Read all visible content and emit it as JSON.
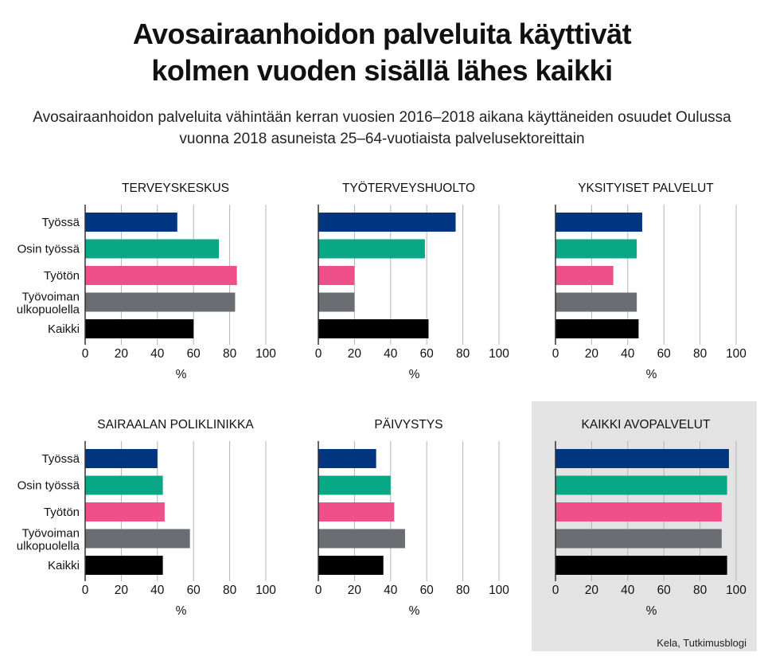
{
  "title": {
    "line1": "Avosairaanhoidon palveluita käyttivät",
    "line2": "kolmen vuoden sisällä lähes kaikki"
  },
  "subtitle": {
    "line1": "Avosairaanhoidon palveluita vähintään kerran vuosien 2016–2018 aikana käyttäneiden osuudet Oulussa",
    "line2": "vuonna 2018 asuneista 25–64-vuotiaista palvelusektoreittain"
  },
  "source": "Kela, Tutkimusblogi",
  "colors": {
    "Työssä": "#003580",
    "Osin työssä": "#08a887",
    "Työtön": "#f0508a",
    "Työvoiman ulkopuolella": "#6a6e72",
    "Kaikki": "#000000",
    "highlight_bg": "#e3e3e3",
    "gridline": "#b5b5b5"
  },
  "chart_data": [
    {
      "type": "bar",
      "orientation": "horizontal",
      "title": "TERVEYSKESKUS",
      "categories": [
        "Työssä",
        "Osin työssä",
        "Työtön",
        "Työvoiman ulkopuolella",
        "Kaikki"
      ],
      "values": [
        51,
        74,
        84,
        83,
        60
      ],
      "xlabel": "%",
      "xlim": [
        0,
        100
      ],
      "xticks": [
        "0",
        "20",
        "40",
        "60",
        "80",
        "100"
      ],
      "grid": true,
      "highlight": false
    },
    {
      "type": "bar",
      "orientation": "horizontal",
      "title": "TYÖTERVEYSHUOLTO",
      "categories": [
        "Työssä",
        "Osin työssä",
        "Työtön",
        "Työvoiman ulkopuolella",
        "Kaikki"
      ],
      "values": [
        76,
        59,
        20,
        20,
        61
      ],
      "xlabel": "%",
      "xlim": [
        0,
        100
      ],
      "xticks": [
        "0",
        "20",
        "40",
        "60",
        "80",
        "100"
      ],
      "grid": true,
      "highlight": false
    },
    {
      "type": "bar",
      "orientation": "horizontal",
      "title": "YKSITYISET PALVELUT",
      "categories": [
        "Työssä",
        "Osin työssä",
        "Työtön",
        "Työvoiman ulkopuolella",
        "Kaikki"
      ],
      "values": [
        48,
        45,
        32,
        45,
        46
      ],
      "xlabel": "%",
      "xlim": [
        0,
        100
      ],
      "xticks": [
        "0",
        "20",
        "40",
        "60",
        "80",
        "100"
      ],
      "grid": true,
      "highlight": false
    },
    {
      "type": "bar",
      "orientation": "horizontal",
      "title": "SAIRAALAN POLIKLINIKKA",
      "categories": [
        "Työssä",
        "Osin työssä",
        "Työtön",
        "Työvoiman ulkopuolella",
        "Kaikki"
      ],
      "values": [
        40,
        43,
        44,
        58,
        43
      ],
      "xlabel": "%",
      "xlim": [
        0,
        100
      ],
      "xticks": [
        "0",
        "20",
        "40",
        "60",
        "80",
        "100"
      ],
      "grid": true,
      "highlight": false
    },
    {
      "type": "bar",
      "orientation": "horizontal",
      "title": "PÄIVYSTYS",
      "categories": [
        "Työssä",
        "Osin työssä",
        "Työtön",
        "Työvoiman ulkopuolella",
        "Kaikki"
      ],
      "values": [
        32,
        40,
        42,
        48,
        36
      ],
      "xlabel": "%",
      "xlim": [
        0,
        100
      ],
      "xticks": [
        "0",
        "20",
        "40",
        "60",
        "80",
        "100"
      ],
      "grid": true,
      "highlight": false
    },
    {
      "type": "bar",
      "orientation": "horizontal",
      "title": "KAIKKI AVOPALVELUT",
      "categories": [
        "Työssä",
        "Osin työssä",
        "Työtön",
        "Työvoiman ulkopuolella",
        "Kaikki"
      ],
      "values": [
        96,
        95,
        92,
        92,
        95
      ],
      "xlabel": "%",
      "xlim": [
        0,
        100
      ],
      "xticks": [
        "0",
        "20",
        "40",
        "60",
        "80",
        "100"
      ],
      "grid": true,
      "highlight": true
    }
  ]
}
